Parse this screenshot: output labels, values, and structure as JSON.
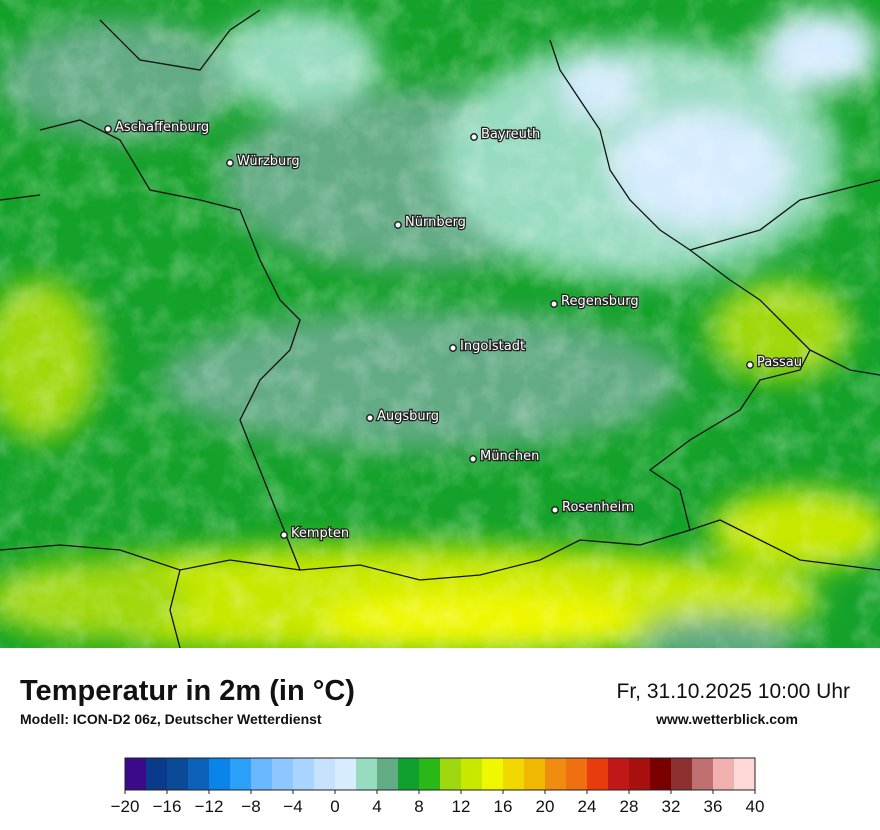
{
  "map": {
    "cities": [
      "Aschaffenburg",
      "Würzburg",
      "Bayreuth",
      "Nürnberg",
      "Regensburg",
      "Ingolstadt",
      "Passau",
      "Augsburg",
      "München",
      "Rosenheim",
      "Kempten"
    ]
  },
  "header": {
    "title": "Temperatur in 2m (in °C)",
    "subtitle": "Modell: ICON-D2 06z, Deutscher Wetterdienst",
    "date": "Fr, 31.10.2025 10:00 Uhr",
    "website": "www.wetterblick.com"
  },
  "legend": {
    "bins": [
      -20,
      -18,
      -16,
      -14,
      -12,
      -10,
      -8,
      -6,
      -4,
      -2,
      0,
      2,
      4,
      6,
      8,
      10,
      12,
      14,
      16,
      18,
      20,
      22,
      24,
      26,
      28,
      30,
      32,
      34,
      36,
      38,
      40
    ],
    "colors": [
      "#3a0a8a",
      "#0a3a8c",
      "#0b4a96",
      "#0b62b8",
      "#0a84e8",
      "#2aa0f8",
      "#6ab8ff",
      "#8ec6ff",
      "#a8d4ff",
      "#c6e2ff",
      "#d8ecff",
      "#98dcc0",
      "#62ab84",
      "#10a030",
      "#2ab818",
      "#a0d810",
      "#c8e800",
      "#f0f800",
      "#f0d800",
      "#f0b800",
      "#f08c10",
      "#f07010",
      "#e83c0c",
      "#c01818",
      "#a81010",
      "#7a0000",
      "#8c3030",
      "#c07070",
      "#f0b0b0",
      "#ffd8d8"
    ],
    "ticks": [
      {
        "value": -20,
        "label": "−20"
      },
      {
        "value": -16,
        "label": "−16"
      },
      {
        "value": -12,
        "label": "−12"
      },
      {
        "value": -8,
        "label": "−8"
      },
      {
        "value": -4,
        "label": "−4"
      },
      0,
      4,
      8,
      12,
      16,
      20,
      24,
      28,
      32,
      36,
      40
    ]
  }
}
